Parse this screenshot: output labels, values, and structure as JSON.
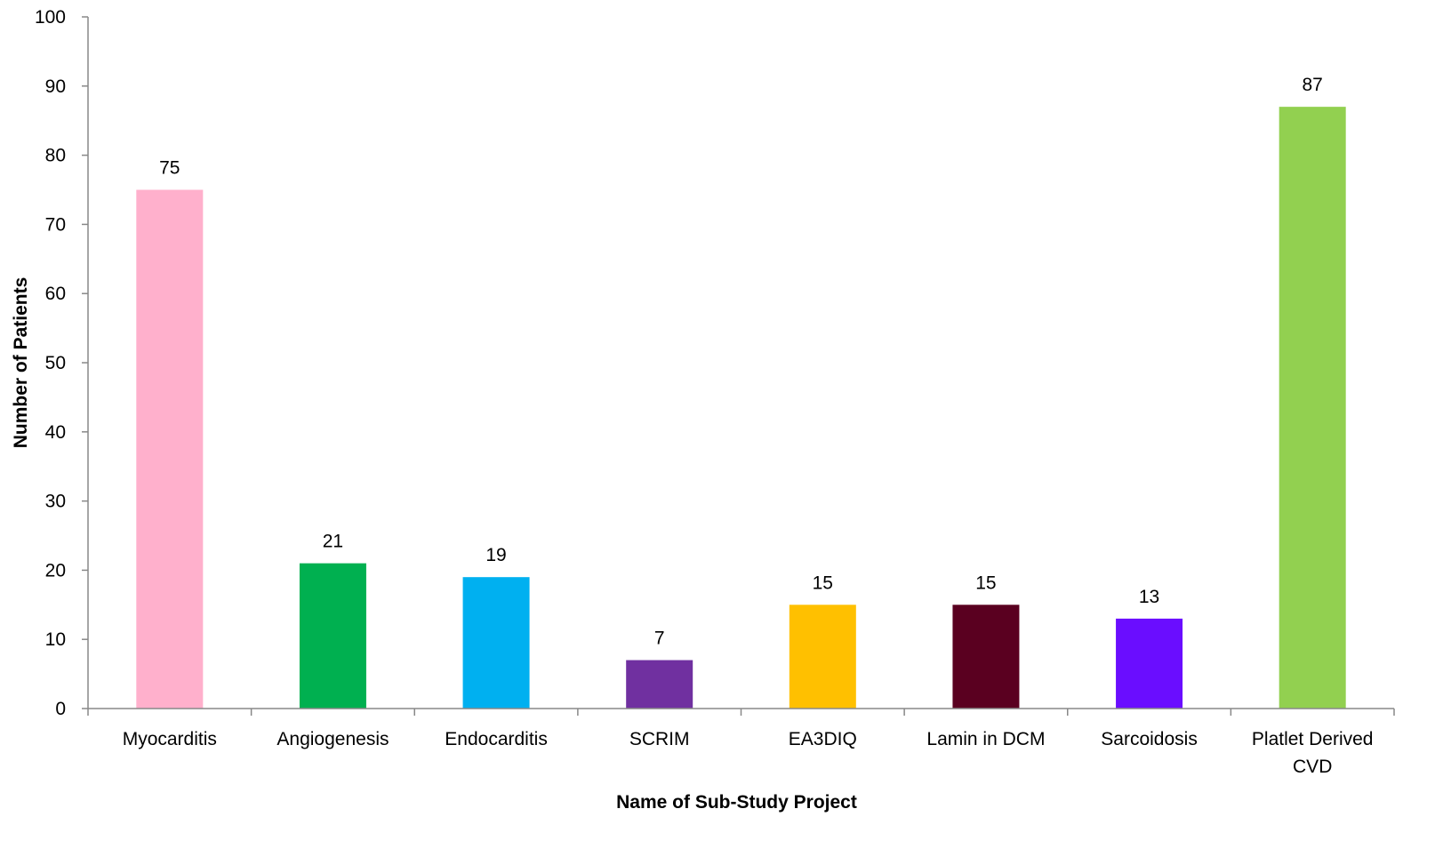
{
  "chart_data": {
    "type": "bar",
    "title": "",
    "xlabel": "Name of Sub-Study Project",
    "ylabel": "Number of Patients",
    "ylim": [
      0,
      100
    ],
    "yticks": [
      "0",
      "10",
      "20",
      "30",
      "40",
      "50",
      "60",
      "70",
      "80",
      "90",
      "100"
    ],
    "grid": false,
    "legend": "none",
    "categories": [
      [
        "Myocarditis"
      ],
      [
        "Angiogenesis"
      ],
      [
        "Endocarditis"
      ],
      [
        "SCRIM"
      ],
      [
        "EA3DIQ"
      ],
      [
        "Lamin in DCM"
      ],
      [
        "Sarcoidosis"
      ],
      [
        "Platlet Derived",
        "CVD"
      ]
    ],
    "values": [
      75,
      21,
      19,
      7,
      15,
      15,
      13,
      87
    ],
    "data_labels": [
      "75",
      "21",
      "19",
      "7",
      "15",
      "15",
      "13",
      "87"
    ],
    "colors": [
      "#FFB0CC",
      "#00B050",
      "#00B0F0",
      "#7030A0",
      "#FFC000",
      "#5A0020",
      "#6A0DFF",
      "#92D050"
    ]
  }
}
